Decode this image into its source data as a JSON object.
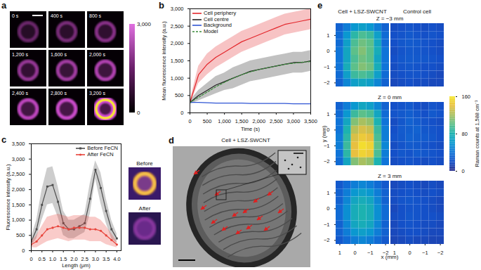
{
  "chart_data": [
    {
      "type": "image",
      "panel": "a",
      "frames": [
        "0 s",
        "400 s",
        "800 s",
        "1,200 s",
        "1,600 s",
        "2,000 s",
        "2,400 s",
        "2,800 s",
        "3,200 s"
      ],
      "colorbar": {
        "range": [
          0,
          3000
        ],
        "ticks": [
          0,
          {
            "value": 3000,
            "label": "3,000"
          }
        ]
      }
    },
    {
      "type": "line",
      "panel": "b",
      "x_label": "Time (s)",
      "y_label": "Mean fluorescence intensity (a.u.)",
      "x": [
        0,
        250,
        500,
        750,
        1000,
        1250,
        1500,
        1750,
        2000,
        2250,
        2500,
        2750,
        3000,
        3250,
        3500
      ],
      "xlim": [
        0,
        3500
      ],
      "ylim": [
        0,
        3000
      ],
      "xticks": [
        0,
        500,
        {
          "value": 1000,
          "label": "1,000"
        },
        {
          "value": 1500,
          "label": "1,500"
        },
        {
          "value": 2000,
          "label": "2,000"
        },
        {
          "value": 2500,
          "label": "2,500"
        },
        {
          "value": 3000,
          "label": "3,000"
        },
        {
          "value": 3500,
          "label": "3,500"
        }
      ],
      "yticks": [
        0,
        500,
        {
          "value": 1000,
          "label": "1,000"
        },
        {
          "value": 1500,
          "label": "1,500"
        },
        {
          "value": 2000,
          "label": "2,000"
        },
        {
          "value": 2500,
          "label": "2,500"
        },
        {
          "value": 3000,
          "label": "3,000"
        }
      ],
      "legend": "top-left",
      "series": [
        {
          "name": "Cell periphery",
          "color": "#e3262b",
          "values": [
            300,
            1100,
            1400,
            1600,
            1750,
            1900,
            2050,
            2150,
            2250,
            2350,
            2450,
            2550,
            2600,
            2650,
            2700
          ],
          "errors": [
            50,
            250,
            300,
            300,
            300,
            300,
            300,
            300,
            300,
            300,
            300,
            300,
            300,
            300,
            300
          ]
        },
        {
          "name": "Cell centre",
          "color": "#222222",
          "values": [
            300,
            500,
            650,
            800,
            900,
            1000,
            1100,
            1200,
            1250,
            1300,
            1350,
            1400,
            1450,
            1450,
            1500
          ],
          "errors": [
            50,
            150,
            200,
            250,
            250,
            300,
            300,
            300,
            300,
            300,
            300,
            300,
            300,
            300,
            300
          ]
        },
        {
          "name": "Background",
          "color": "#2f55d4",
          "values": [
            300,
            300,
            290,
            280,
            280,
            280,
            280,
            270,
            270,
            270,
            270,
            270,
            260,
            260,
            260
          ]
        },
        {
          "name": "Model",
          "color": "#3b8a3b",
          "line_style": "dashed",
          "values": [
            300,
            450,
            600,
            750,
            880,
            1000,
            1100,
            1180,
            1250,
            1300,
            1350,
            1400,
            1430,
            1460,
            1480
          ]
        }
      ]
    },
    {
      "type": "line",
      "panel": "c",
      "x_label": "Length (μm)",
      "y_label": "Fluorescence intensity (a.u.)",
      "x": [
        0,
        0.25,
        0.5,
        0.75,
        1,
        1.25,
        1.5,
        1.75,
        2,
        2.25,
        2.5,
        2.75,
        3,
        3.25,
        3.5,
        3.75,
        4
      ],
      "xlim": [
        0,
        4.2
      ],
      "ylim": [
        0,
        3500
      ],
      "xticks": [
        0,
        0.5,
        {
          "value": 1,
          "label": "1.0"
        },
        1.5,
        {
          "value": 2,
          "label": "2.0"
        },
        2.5,
        {
          "value": 3,
          "label": "3.0"
        },
        3.5,
        {
          "value": 4,
          "label": "4.0"
        }
      ],
      "yticks": [
        0,
        500,
        {
          "value": 1000,
          "label": "1,000"
        },
        {
          "value": 1500,
          "label": "1,500"
        },
        {
          "value": 2000,
          "label": "2,000"
        },
        {
          "value": 2500,
          "label": "2,500"
        },
        {
          "value": 3000,
          "label": "3,000"
        },
        {
          "value": 3500,
          "label": "3,500"
        }
      ],
      "legend": "top-right",
      "series": [
        {
          "name": "Before FeCN",
          "color": "#4d4d4d",
          "marker": "square",
          "values": [
            300,
            700,
            1500,
            2100,
            2150,
            1600,
            900,
            700,
            700,
            800,
            900,
            1700,
            2650,
            2050,
            1300,
            700,
            400
          ],
          "errors": [
            150,
            300,
            500,
            600,
            600,
            500,
            400,
            300,
            300,
            300,
            300,
            500,
            300,
            500,
            400,
            300,
            150
          ]
        },
        {
          "name": "After FeCN",
          "color": "#e8453c",
          "marker": "circle",
          "values": [
            200,
            300,
            500,
            700,
            750,
            800,
            750,
            700,
            750,
            750,
            750,
            700,
            700,
            650,
            500,
            350,
            200
          ],
          "errors": [
            100,
            200,
            300,
            400,
            400,
            400,
            400,
            400,
            400,
            400,
            400,
            400,
            400,
            350,
            300,
            200,
            100
          ]
        }
      ],
      "insets": [
        "Before",
        "After"
      ]
    },
    {
      "type": "image",
      "panel": "d",
      "title": "Cell + LSZ-SWCNT"
    },
    {
      "type": "heatmap",
      "panel": "e",
      "column_titles": [
        "Cell + LSZ-SWCNT",
        "Control cell"
      ],
      "x_label": "x (mm)",
      "y_label": "y (mm)",
      "x": [
        1,
        0.5,
        0,
        -0.5,
        -1,
        -1.5,
        -2
      ],
      "y": [
        1.5,
        1,
        0.5,
        0,
        -0.5,
        -1,
        -1.5,
        -2
      ],
      "xlim": [
        1.25,
        -2.25
      ],
      "ylim": [
        -2.25,
        1.75
      ],
      "xticks": [
        1,
        0,
        -1,
        -2
      ],
      "yticks": [
        1,
        0,
        -1,
        -2
      ],
      "colorbar": {
        "label": "Raman counts at 1,588 cm⁻¹",
        "range": [
          0,
          160
        ],
        "ticks": [
          0,
          80,
          160
        ]
      },
      "maps": [
        {
          "title": "Z = −3 mm",
          "cells": [
            [
              30,
              45,
              60,
              65,
              60,
              45,
              30
            ],
            [
              35,
              60,
              85,
              95,
              90,
              65,
              35
            ],
            [
              35,
              65,
              95,
              105,
              100,
              70,
              35
            ],
            [
              40,
              70,
              100,
              110,
              100,
              75,
              40
            ],
            [
              40,
              70,
              95,
              105,
              100,
              70,
              40
            ],
            [
              40,
              75,
              100,
              110,
              105,
              75,
              40
            ],
            [
              35,
              65,
              90,
              95,
              90,
              65,
              35
            ],
            [
              30,
              50,
              65,
              70,
              65,
              50,
              30
            ]
          ],
          "control": [
            [
              18,
              20,
              22,
              20,
              18,
              20,
              18
            ],
            [
              20,
              22,
              25,
              22,
              20,
              22,
              20
            ],
            [
              20,
              24,
              26,
              25,
              22,
              20,
              18
            ],
            [
              18,
              22,
              25,
              24,
              22,
              20,
              18
            ],
            [
              20,
              24,
              26,
              25,
              24,
              22,
              20
            ],
            [
              18,
              22,
              24,
              22,
              20,
              20,
              18
            ],
            [
              18,
              20,
              22,
              22,
              20,
              18,
              16
            ],
            [
              16,
              18,
              20,
              18,
              18,
              16,
              16
            ]
          ]
        },
        {
          "title": "Z = 0 mm",
          "cells": [
            [
              30,
              45,
              60,
              70,
              65,
              50,
              30
            ],
            [
              35,
              60,
              90,
              100,
              95,
              70,
              35
            ],
            [
              40,
              70,
              110,
              120,
              115,
              80,
              40
            ],
            [
              40,
              80,
              125,
              135,
              130,
              90,
              45
            ],
            [
              45,
              85,
              135,
              145,
              140,
              95,
              45
            ],
            [
              45,
              90,
              140,
              155,
              150,
              100,
              50
            ],
            [
              40,
              85,
              140,
              150,
              145,
              95,
              45
            ],
            [
              35,
              70,
              110,
              120,
              115,
              80,
              40
            ]
          ],
          "control": [
            [
              20,
              22,
              25,
              20,
              18,
              22,
              20
            ],
            [
              22,
              25,
              28,
              24,
              20,
              25,
              22
            ],
            [
              18,
              24,
              30,
              26,
              22,
              20,
              18
            ],
            [
              20,
              26,
              28,
              30,
              24,
              22,
              20
            ],
            [
              22,
              25,
              30,
              28,
              26,
              24,
              20
            ],
            [
              18,
              22,
              26,
              25,
              22,
              20,
              18
            ],
            [
              20,
              24,
              22,
              26,
              24,
              22,
              20
            ],
            [
              18,
              20,
              22,
              20,
              18,
              20,
              18
            ]
          ]
        },
        {
          "title": "Z = 3 mm",
          "cells": [
            [
              25,
              35,
              45,
              50,
              45,
              35,
              25
            ],
            [
              30,
              45,
              60,
              65,
              60,
              45,
              30
            ],
            [
              30,
              50,
              70,
              75,
              70,
              50,
              30
            ],
            [
              35,
              55,
              75,
              80,
              75,
              55,
              35
            ],
            [
              35,
              55,
              75,
              80,
              75,
              55,
              35
            ],
            [
              30,
              50,
              70,
              75,
              70,
              50,
              30
            ],
            [
              30,
              45,
              60,
              65,
              60,
              45,
              30
            ],
            [
              25,
              35,
              45,
              50,
              45,
              35,
              25
            ]
          ],
          "control": [
            [
              16,
              18,
              20,
              18,
              16,
              18,
              16
            ],
            [
              18,
              20,
              22,
              20,
              18,
              20,
              18
            ],
            [
              18,
              22,
              24,
              22,
              20,
              18,
              16
            ],
            [
              16,
              20,
              22,
              22,
              20,
              18,
              16
            ],
            [
              18,
              20,
              24,
              22,
              20,
              20,
              18
            ],
            [
              16,
              20,
              22,
              20,
              18,
              18,
              16
            ],
            [
              16,
              18,
              20,
              20,
              18,
              16,
              16
            ],
            [
              14,
              16,
              18,
              16,
              16,
              14,
              14
            ]
          ]
        }
      ]
    }
  ]
}
